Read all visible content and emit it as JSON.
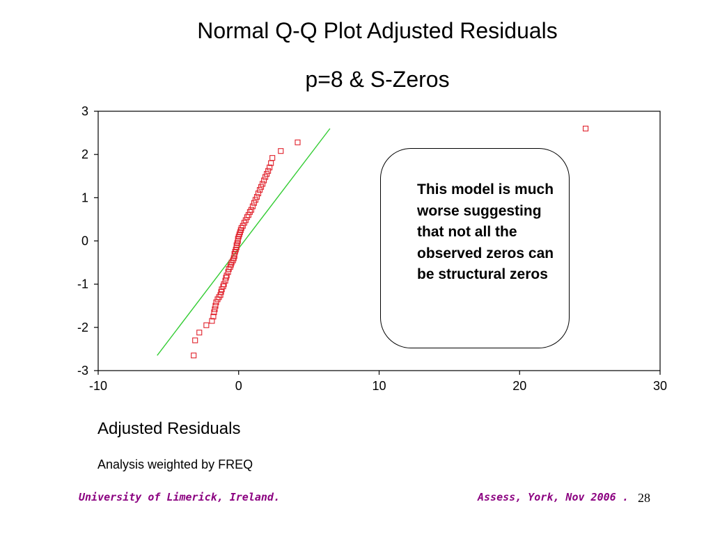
{
  "slide": {
    "title_line1": "Normal Q-Q Plot  Adjusted Residuals",
    "title_line2": "p=8 & S-Zeros",
    "callout_text": "This model is much worse suggesting that not all the observed zeros can be structural zeros",
    "x_axis_title": "Adjusted Residuals",
    "weight_note": "Analysis weighted by FREQ",
    "footer_left": "University of Limerick, Ireland.",
    "footer_right": "Assess, York, Nov 2006 .",
    "page_number": "28"
  },
  "chart_data": {
    "type": "scatter",
    "xlim": [
      -10,
      30
    ],
    "ylim": [
      -3,
      3
    ],
    "x_ticks": [
      "-10",
      "0",
      "10",
      "20",
      "30"
    ],
    "y_ticks": [
      "3",
      "2",
      "1",
      "0",
      "-1",
      "-2",
      "-3"
    ],
    "grid": false,
    "marker": "open-square",
    "point_color": "#e0202a",
    "reference_line": {
      "x": [
        -5.8,
        6.5
      ],
      "y": [
        -2.65,
        2.6
      ],
      "color": "#33cc33"
    },
    "points": [
      [
        -3.2,
        -2.65
      ],
      [
        -3.1,
        -2.3
      ],
      [
        -2.8,
        -2.12
      ],
      [
        -2.3,
        -1.95
      ],
      [
        -1.9,
        -1.85
      ],
      [
        -1.8,
        -1.75
      ],
      [
        -1.75,
        -1.65
      ],
      [
        -1.7,
        -1.58
      ],
      [
        -1.65,
        -1.5
      ],
      [
        -1.6,
        -1.42
      ],
      [
        -1.5,
        -1.35
      ],
      [
        -1.4,
        -1.3
      ],
      [
        -1.3,
        -1.25
      ],
      [
        -1.25,
        -1.18
      ],
      [
        -1.2,
        -1.12
      ],
      [
        -1.1,
        -1.05
      ],
      [
        -1.05,
        -1.0
      ],
      [
        -0.95,
        -0.92
      ],
      [
        -0.9,
        -0.85
      ],
      [
        -0.85,
        -0.8
      ],
      [
        -0.75,
        -0.72
      ],
      [
        -0.7,
        -0.65
      ],
      [
        -0.6,
        -0.6
      ],
      [
        -0.55,
        -0.55
      ],
      [
        -0.5,
        -0.5
      ],
      [
        -0.4,
        -0.45
      ],
      [
        -0.35,
        -0.4
      ],
      [
        -0.3,
        -0.35
      ],
      [
        -0.3,
        -0.3
      ],
      [
        -0.25,
        -0.25
      ],
      [
        -0.2,
        -0.2
      ],
      [
        -0.15,
        -0.15
      ],
      [
        -0.15,
        -0.1
      ],
      [
        -0.1,
        -0.05
      ],
      [
        -0.05,
        0.0
      ],
      [
        -0.05,
        0.05
      ],
      [
        0.0,
        0.1
      ],
      [
        0.05,
        0.15
      ],
      [
        0.1,
        0.2
      ],
      [
        0.15,
        0.25
      ],
      [
        0.2,
        0.3
      ],
      [
        0.3,
        0.35
      ],
      [
        0.4,
        0.42
      ],
      [
        0.5,
        0.48
      ],
      [
        0.6,
        0.55
      ],
      [
        0.7,
        0.6
      ],
      [
        0.8,
        0.67
      ],
      [
        0.9,
        0.72
      ],
      [
        1.0,
        0.8
      ],
      [
        1.1,
        0.88
      ],
      [
        1.2,
        0.95
      ],
      [
        1.3,
        1.02
      ],
      [
        1.4,
        1.1
      ],
      [
        1.5,
        1.18
      ],
      [
        1.6,
        1.25
      ],
      [
        1.7,
        1.32
      ],
      [
        1.8,
        1.4
      ],
      [
        1.9,
        1.48
      ],
      [
        2.0,
        1.55
      ],
      [
        2.1,
        1.62
      ],
      [
        2.2,
        1.7
      ],
      [
        2.3,
        1.8
      ],
      [
        2.4,
        1.92
      ],
      [
        3.0,
        2.08
      ],
      [
        4.2,
        2.28
      ],
      [
        24.7,
        2.6
      ]
    ]
  }
}
